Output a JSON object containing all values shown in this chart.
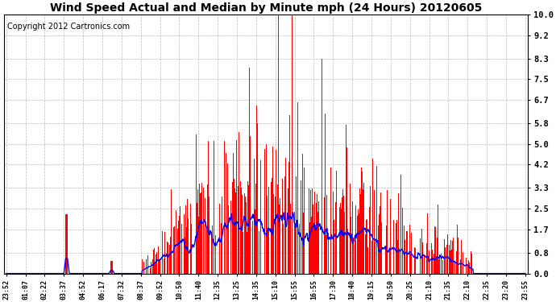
{
  "title": "Wind Speed Actual and Median by Minute mph (24 Hours) 20120605",
  "copyright": "Copyright 2012 Cartronics.com",
  "yticks": [
    0.0,
    0.8,
    1.7,
    2.5,
    3.3,
    4.2,
    5.0,
    5.8,
    6.7,
    7.5,
    8.3,
    9.2,
    10.0
  ],
  "ylim": [
    0.0,
    10.0
  ],
  "bar_color": "#ff0000",
  "line_color": "#0000ff",
  "background_color": "#ffffff",
  "grid_color": "#bbbbbb",
  "title_fontsize": 10,
  "copyright_fontsize": 7,
  "xtick_labels": [
    "23:52",
    "01:07",
    "02:22",
    "03:37",
    "04:52",
    "06:17",
    "07:32",
    "08:37",
    "09:52",
    "10:50",
    "11:40",
    "12:35",
    "13:25",
    "14:35",
    "15:10",
    "15:55",
    "16:55",
    "17:30",
    "18:40",
    "19:15",
    "19:50",
    "20:25",
    "21:10",
    "21:35",
    "22:10",
    "22:35",
    "23:20",
    "23:55"
  ]
}
